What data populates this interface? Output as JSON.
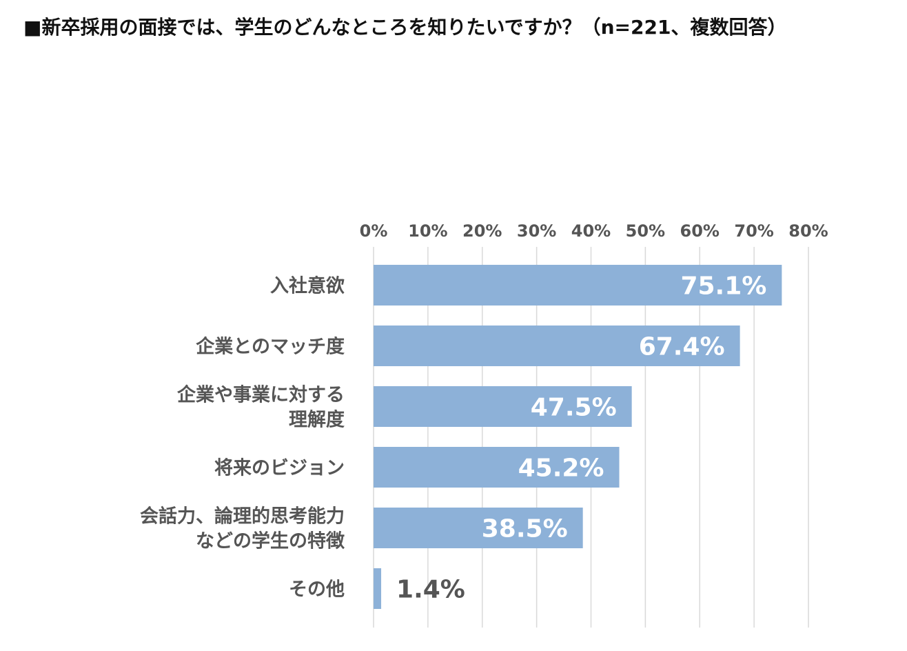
{
  "chart_data": {
    "type": "bar",
    "orientation": "horizontal",
    "title": "■新卒採用の面接では、学生のどんなところを知りたいですか？（n=221、複数回答）",
    "categories": [
      [
        "入社意欲"
      ],
      [
        "企業とのマッチ度"
      ],
      [
        "企業や事業に対する",
        "理解度"
      ],
      [
        "将来のビジョン"
      ],
      [
        "会話力、論理的思考能力",
        "などの学生の特徴"
      ],
      [
        "その他"
      ]
    ],
    "values": [
      75.1,
      67.4,
      47.5,
      45.2,
      38.5,
      1.4
    ],
    "value_labels": [
      "75.1%",
      "67.4%",
      "47.5%",
      "45.2%",
      "38.5%",
      "1.4%"
    ],
    "xlim": [
      0,
      80
    ],
    "xticks": [
      "0%",
      "10%",
      "20%",
      "30%",
      "40%",
      "50%",
      "60%",
      "70%",
      "80%"
    ],
    "axis_position": "top",
    "grid": true,
    "bar_color": "#8db1d8",
    "grid_color": "#d9d9d9"
  }
}
